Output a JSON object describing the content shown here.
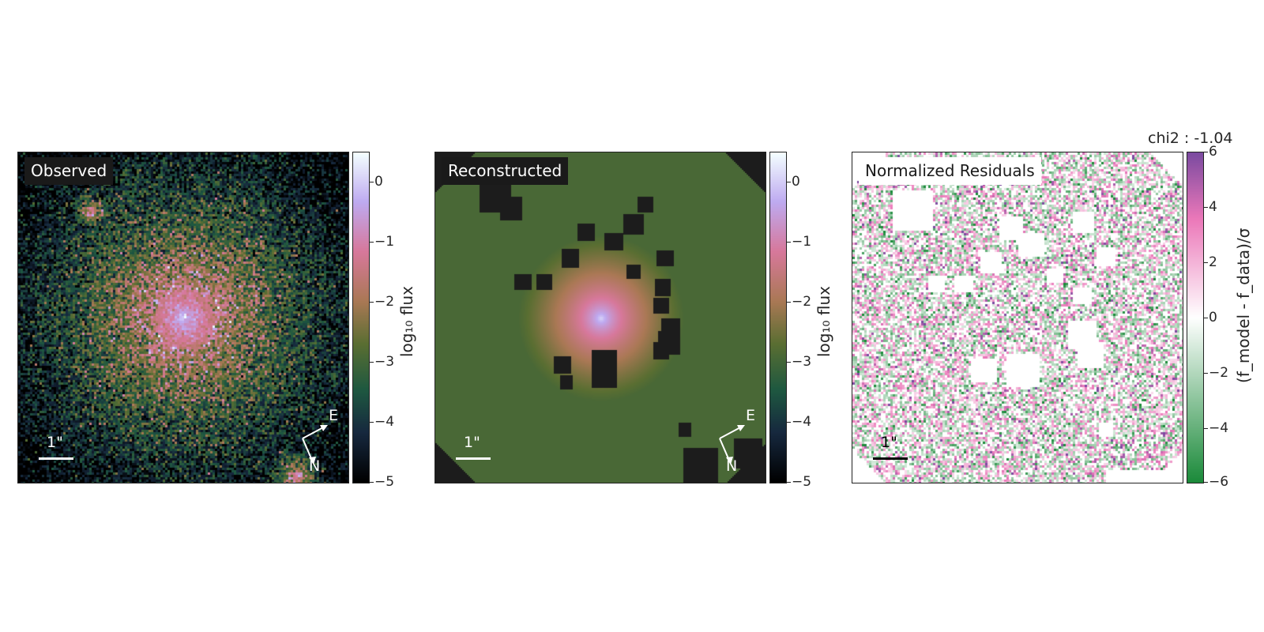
{
  "panels": [
    {
      "label": "Observed"
    },
    {
      "label": "Reconstructed"
    },
    {
      "label": "Normalized Residuals"
    }
  ],
  "residual_title": "chi2 : -1.04",
  "colorbars": {
    "flux": {
      "ticks": [
        "0",
        "−1",
        "−2",
        "−3",
        "−4",
        "−5"
      ],
      "label": "log₁₀ flux",
      "range": [
        -5,
        0.5
      ]
    },
    "residual": {
      "ticks": [
        "6",
        "4",
        "2",
        "0",
        "−2",
        "−4",
        "−6"
      ],
      "label": "(f_model - f_data)/σ",
      "range": [
        -6,
        6
      ]
    }
  },
  "scale_label": "1\"",
  "compass": {
    "east": "E",
    "north": "N"
  },
  "colors": {
    "cubehelix_low": "#000000",
    "cubehelix_high": "#f4ffff",
    "residual_low": "#1b8a3a",
    "residual_mid": "#ffffff",
    "residual_high": "#7b4aa0",
    "mask": "#1c1c1c"
  }
}
